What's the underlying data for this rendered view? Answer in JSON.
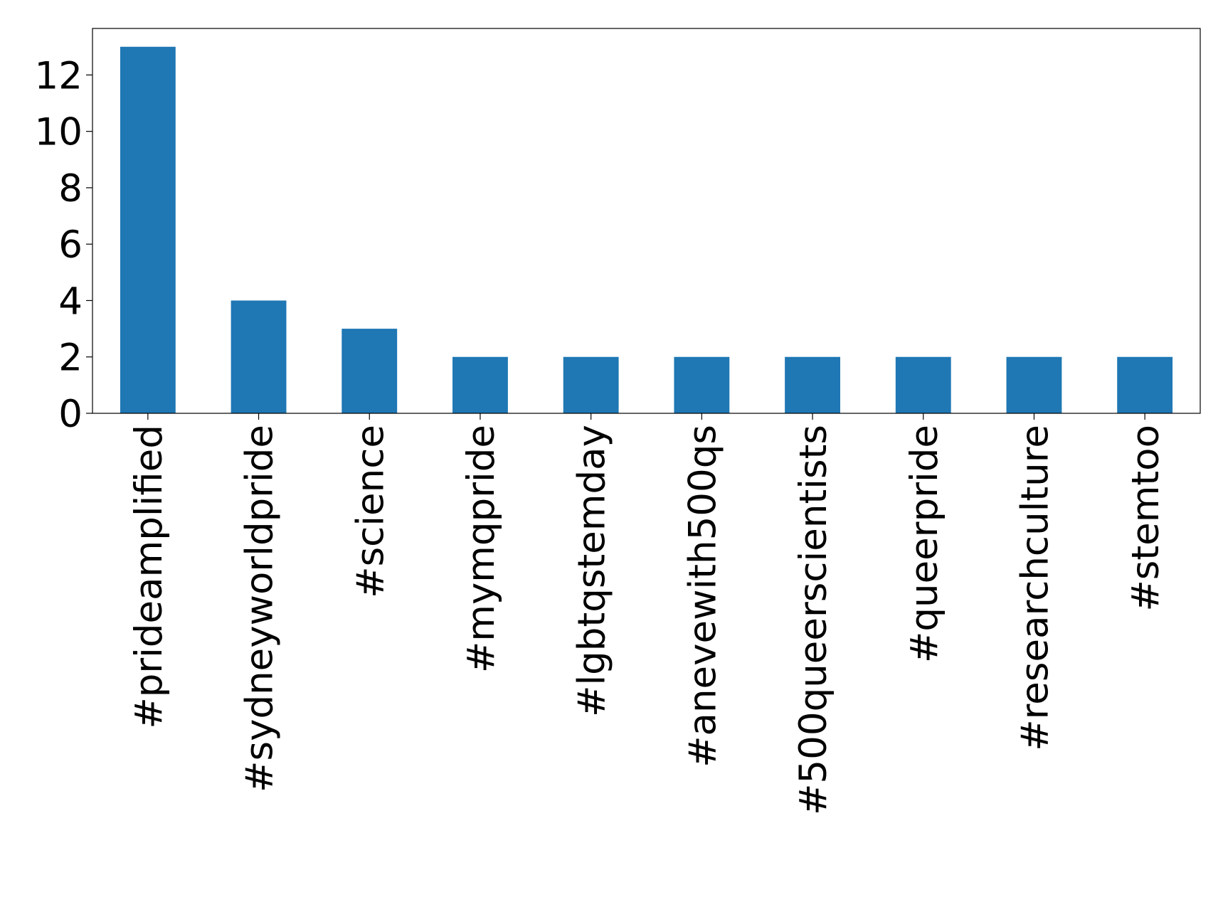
{
  "chart_data": {
    "type": "bar",
    "categories": [
      "#prideamplified",
      "#sydneyworldpride",
      "#science",
      "#mymqpride",
      "#lgbtqstemday",
      "#anevewith500qs",
      "#500queerscientists",
      "#queerpride",
      "#researchculture",
      "#stemtoo"
    ],
    "values": [
      13,
      4,
      3,
      2,
      2,
      2,
      2,
      2,
      2,
      2
    ],
    "color": "#1f77b4",
    "ylim": [
      0,
      13.65
    ],
    "yticks": [
      0,
      2,
      4,
      6,
      8,
      10,
      12
    ],
    "grid": false
  }
}
